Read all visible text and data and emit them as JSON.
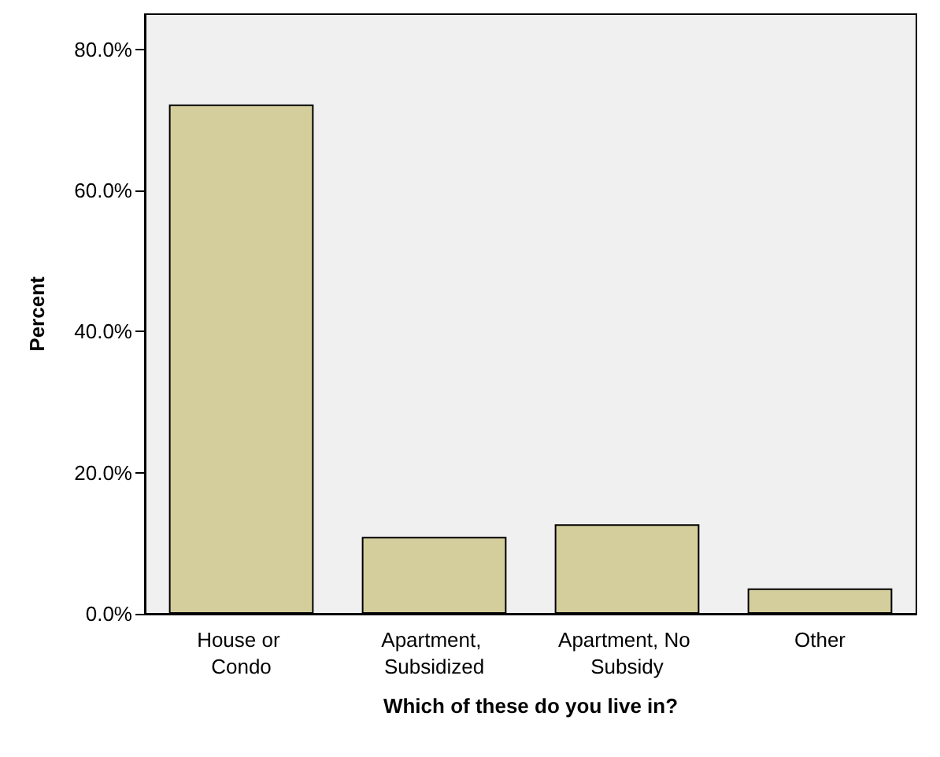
{
  "chart_data": {
    "type": "bar",
    "xlabel": "Which of these do you live in?",
    "ylabel": "Percent",
    "categories": [
      "House or Condo",
      "Apartment, Subsidized",
      "Apartment, No Subsidy",
      "Other"
    ],
    "values": [
      72.2,
      10.9,
      12.7,
      3.6
    ],
    "color": "#d3ce9b",
    "ylim": [
      0,
      85
    ],
    "yticks": [
      {
        "value": 0,
        "label": "0.0%"
      },
      {
        "value": 20,
        "label": "20.0%"
      },
      {
        "value": 40,
        "label": "40.0%"
      },
      {
        "value": 60,
        "label": "60.0%"
      },
      {
        "value": 80,
        "label": "80.0%"
      }
    ],
    "grid": false
  }
}
